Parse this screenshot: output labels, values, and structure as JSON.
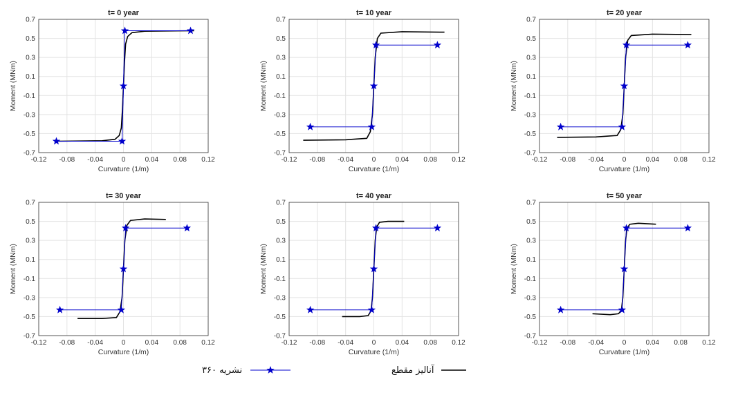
{
  "charts_common": {
    "ylabel": "Moment (MNm)",
    "xlabel": "Curvature (1/m)",
    "ylim": [
      -0.7,
      0.7
    ],
    "yticks": [
      -0.7,
      -0.5,
      -0.3,
      -0.1,
      0.1,
      0.3,
      0.5,
      0.7
    ],
    "xlim": [
      -0.12,
      0.12
    ],
    "xticks": [
      -0.12,
      -0.08,
      -0.04,
      0,
      0.04,
      0.08,
      0.12
    ],
    "grid": true,
    "legend_placement": "bottom"
  },
  "legend": {
    "published": "نشریه ۳۶۰",
    "analysis": "آنالیز مقطع"
  },
  "colors": {
    "published": "#0000cc",
    "analysis": "#000000"
  },
  "chart_data": [
    {
      "type": "line",
      "title": "t= 0 year",
      "series": [
        {
          "name": "آنالیز مقطع",
          "x": [
            -0.095,
            -0.03,
            -0.012,
            -0.006,
            -0.003,
            -0.0015,
            0,
            0.0015,
            0.003,
            0.006,
            0.012,
            0.03,
            0.1
          ],
          "y": [
            -0.58,
            -0.575,
            -0.56,
            -0.52,
            -0.44,
            -0.25,
            0,
            0.25,
            0.44,
            0.52,
            0.56,
            0.575,
            0.58
          ]
        },
        {
          "name": "نشریه ۳۶۰",
          "x": [
            -0.095,
            -0.002,
            0,
            0.002,
            0.095
          ],
          "y": [
            -0.58,
            -0.58,
            0,
            0.58,
            0.58
          ]
        }
      ]
    },
    {
      "type": "line",
      "title": "t= 10 year",
      "series": [
        {
          "name": "آنالیز مقطع",
          "x": [
            -0.1,
            -0.04,
            -0.01,
            -0.005,
            -0.002,
            0,
            0.002,
            0.005,
            0.01,
            0.04,
            0.1
          ],
          "y": [
            -0.57,
            -0.565,
            -0.55,
            -0.48,
            -0.3,
            0,
            0.3,
            0.5,
            0.555,
            0.57,
            0.565
          ]
        },
        {
          "name": "نشریه ۳۶۰",
          "x": [
            -0.09,
            -0.003,
            0,
            0.003,
            0.09
          ],
          "y": [
            -0.43,
            -0.43,
            0,
            0.43,
            0.43
          ]
        }
      ]
    },
    {
      "type": "line",
      "title": "t= 20 year",
      "series": [
        {
          "name": "آنالیز مقطع",
          "x": [
            -0.095,
            -0.04,
            -0.01,
            -0.005,
            -0.002,
            0,
            0.002,
            0.005,
            0.01,
            0.04,
            0.095
          ],
          "y": [
            -0.54,
            -0.535,
            -0.52,
            -0.46,
            -0.3,
            0,
            0.3,
            0.48,
            0.53,
            0.545,
            0.54
          ]
        },
        {
          "name": "نشریه ۳۶۰",
          "x": [
            -0.09,
            -0.003,
            0,
            0.003,
            0.09
          ],
          "y": [
            -0.43,
            -0.43,
            0,
            0.43,
            0.43
          ]
        }
      ]
    },
    {
      "type": "line",
      "title": "t= 30 year",
      "series": [
        {
          "name": "آنالیز مقطع",
          "x": [
            -0.065,
            -0.03,
            -0.01,
            -0.005,
            -0.002,
            0,
            0.002,
            0.005,
            0.01,
            0.03,
            0.06
          ],
          "y": [
            -0.52,
            -0.52,
            -0.51,
            -0.45,
            -0.3,
            0,
            0.3,
            0.46,
            0.51,
            0.525,
            0.52
          ]
        },
        {
          "name": "نشریه ۳۶۰",
          "x": [
            -0.09,
            -0.003,
            0,
            0.003,
            0.09
          ],
          "y": [
            -0.43,
            -0.43,
            0,
            0.43,
            0.43
          ]
        }
      ]
    },
    {
      "type": "line",
      "title": "t= 40 year",
      "series": [
        {
          "name": "آنالیز مقطع",
          "x": [
            -0.045,
            -0.02,
            -0.008,
            -0.004,
            -0.002,
            0,
            0.002,
            0.004,
            0.008,
            0.02,
            0.043
          ],
          "y": [
            -0.5,
            -0.5,
            -0.49,
            -0.44,
            -0.3,
            0,
            0.3,
            0.44,
            0.49,
            0.5,
            0.5
          ]
        },
        {
          "name": "نشریه ۳۶۰",
          "x": [
            -0.09,
            -0.003,
            0,
            0.003,
            0.09
          ],
          "y": [
            -0.43,
            -0.43,
            0,
            0.43,
            0.43
          ]
        }
      ]
    },
    {
      "type": "line",
      "title": "t= 50 year",
      "series": [
        {
          "name": "آنالیز مقطع",
          "x": [
            -0.045,
            -0.02,
            -0.008,
            -0.004,
            -0.002,
            0,
            0.002,
            0.004,
            0.008,
            0.02,
            0.045
          ],
          "y": [
            -0.47,
            -0.48,
            -0.47,
            -0.43,
            -0.3,
            0,
            0.3,
            0.43,
            0.47,
            0.48,
            0.47
          ]
        },
        {
          "name": "نشریه ۳۶۰",
          "x": [
            -0.09,
            -0.003,
            0,
            0.003,
            0.09
          ],
          "y": [
            -0.43,
            -0.43,
            0,
            0.43,
            0.43
          ]
        }
      ]
    }
  ]
}
